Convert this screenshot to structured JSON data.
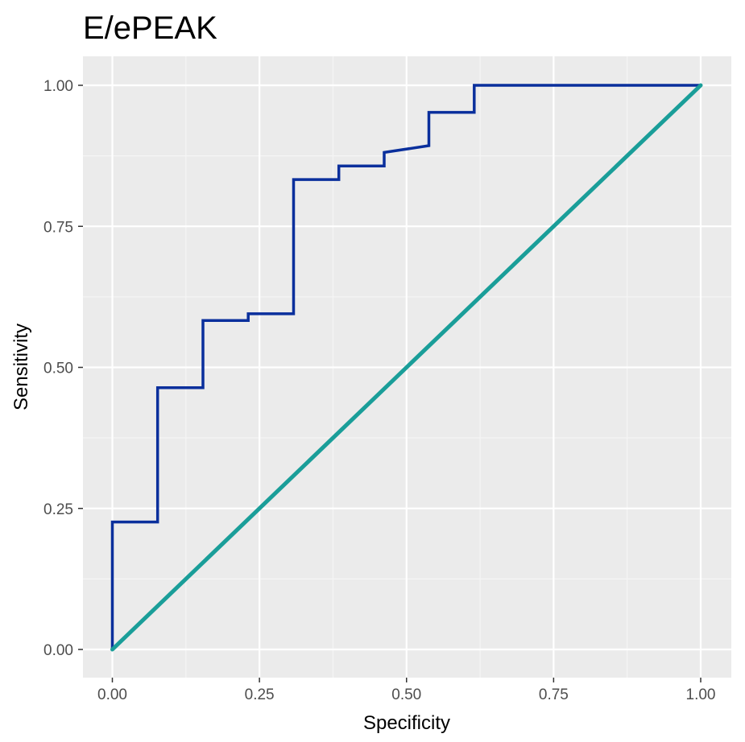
{
  "chart_data": {
    "type": "line",
    "title": "E/ePEAK",
    "xlabel": "Specificity",
    "ylabel": "Sensitivity",
    "xlim": [
      0,
      1
    ],
    "ylim": [
      0,
      1
    ],
    "x_ticks": [
      "0.00",
      "0.25",
      "0.50",
      "0.75",
      "1.00"
    ],
    "y_ticks": [
      "0.00",
      "0.25",
      "0.50",
      "0.75",
      "1.00"
    ],
    "grid": true,
    "panel_background": "#ebebeb",
    "series": [
      {
        "color": "#0a2f9c",
        "x": [
          0,
          0,
          0.077,
          0.077,
          0.154,
          0.154,
          0.231,
          0.231,
          0.308,
          0.308,
          0.385,
          0.385,
          0.462,
          0.462,
          0.538,
          0.538,
          0.615,
          0.615,
          1.0
        ],
        "y": [
          0,
          0.226,
          0.226,
          0.464,
          0.464,
          0.583,
          0.583,
          0.595,
          0.595,
          0.833,
          0.833,
          0.857,
          0.857,
          0.881,
          0.893,
          0.952,
          0.952,
          1.0,
          1.0
        ]
      },
      {
        "color": "#1a9e99",
        "x": [
          0,
          1
        ],
        "y": [
          0,
          1
        ]
      }
    ]
  }
}
